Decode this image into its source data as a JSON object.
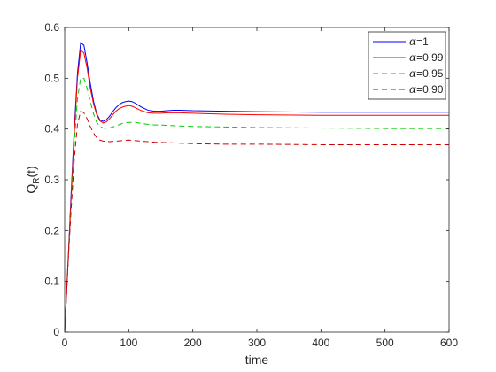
{
  "chart_data": {
    "type": "line",
    "title": "",
    "xlabel": "time",
    "ylabel": "Q",
    "ylabel_subscript": "R",
    "ylabel_suffix": "(t)",
    "xlim": [
      0,
      600
    ],
    "ylim": [
      0,
      0.6
    ],
    "xticks": [
      0,
      100,
      200,
      300,
      400,
      500,
      600
    ],
    "yticks": [
      0,
      0.1,
      0.2,
      0.3,
      0.4,
      0.5,
      0.6
    ],
    "grid": false,
    "legend_position": "top-right",
    "series": [
      {
        "name": "α=1",
        "greek": "α",
        "value_text": "=1",
        "color": "#0000ff",
        "dash": "solid",
        "x": [
          0,
          5,
          10,
          15,
          20,
          25,
          30,
          35,
          40,
          45,
          50,
          55,
          60,
          65,
          70,
          75,
          80,
          85,
          90,
          95,
          100,
          105,
          110,
          115,
          120,
          130,
          140,
          150,
          160,
          170,
          180,
          200,
          250,
          300,
          400,
          500,
          600
        ],
        "y": [
          0,
          0.13,
          0.27,
          0.4,
          0.51,
          0.57,
          0.565,
          0.53,
          0.49,
          0.455,
          0.43,
          0.418,
          0.415,
          0.418,
          0.425,
          0.434,
          0.442,
          0.448,
          0.452,
          0.454,
          0.455,
          0.454,
          0.451,
          0.447,
          0.443,
          0.437,
          0.435,
          0.435,
          0.436,
          0.437,
          0.437,
          0.436,
          0.435,
          0.434,
          0.433,
          0.433,
          0.433
        ]
      },
      {
        "name": "α=0.99",
        "greek": "α",
        "value_text": "=0.99",
        "color": "#ff0000",
        "dash": "solid",
        "x": [
          0,
          5,
          10,
          15,
          20,
          25,
          30,
          35,
          40,
          45,
          50,
          55,
          60,
          65,
          70,
          75,
          80,
          85,
          90,
          95,
          100,
          105,
          110,
          115,
          120,
          130,
          140,
          150,
          160,
          170,
          180,
          200,
          250,
          300,
          400,
          500,
          600
        ],
        "y": [
          0,
          0.13,
          0.26,
          0.39,
          0.5,
          0.555,
          0.55,
          0.52,
          0.48,
          0.45,
          0.428,
          0.416,
          0.412,
          0.414,
          0.42,
          0.428,
          0.435,
          0.44,
          0.443,
          0.445,
          0.446,
          0.445,
          0.442,
          0.439,
          0.436,
          0.432,
          0.431,
          0.431,
          0.432,
          0.432,
          0.432,
          0.431,
          0.429,
          0.428,
          0.427,
          0.427,
          0.427
        ]
      },
      {
        "name": "α=0.95",
        "greek": "α",
        "value_text": "=0.95",
        "color": "#00cc00",
        "dash": "dashed",
        "x": [
          0,
          5,
          10,
          15,
          20,
          25,
          30,
          35,
          40,
          45,
          50,
          55,
          60,
          65,
          70,
          80,
          90,
          100,
          110,
          120,
          130,
          140,
          150,
          160,
          180,
          200,
          250,
          300,
          400,
          500,
          600
        ],
        "y": [
          0,
          0.13,
          0.25,
          0.37,
          0.46,
          0.5,
          0.5,
          0.48,
          0.455,
          0.43,
          0.413,
          0.405,
          0.402,
          0.401,
          0.402,
          0.406,
          0.411,
          0.413,
          0.413,
          0.411,
          0.409,
          0.408,
          0.408,
          0.407,
          0.406,
          0.405,
          0.404,
          0.403,
          0.402,
          0.401,
          0.401
        ]
      },
      {
        "name": "α=0.90",
        "greek": "α",
        "value_text": "=0.90",
        "color": "#cc0000",
        "dash": "dashed",
        "x": [
          0,
          5,
          10,
          15,
          20,
          25,
          30,
          35,
          40,
          45,
          50,
          55,
          60,
          70,
          80,
          90,
          100,
          110,
          120,
          140,
          160,
          180,
          200,
          250,
          300,
          400,
          500,
          600
        ],
        "y": [
          0,
          0.13,
          0.24,
          0.34,
          0.41,
          0.435,
          0.432,
          0.42,
          0.405,
          0.392,
          0.383,
          0.378,
          0.376,
          0.375,
          0.376,
          0.377,
          0.378,
          0.377,
          0.376,
          0.374,
          0.373,
          0.372,
          0.371,
          0.37,
          0.37,
          0.369,
          0.369,
          0.369
        ]
      }
    ]
  }
}
